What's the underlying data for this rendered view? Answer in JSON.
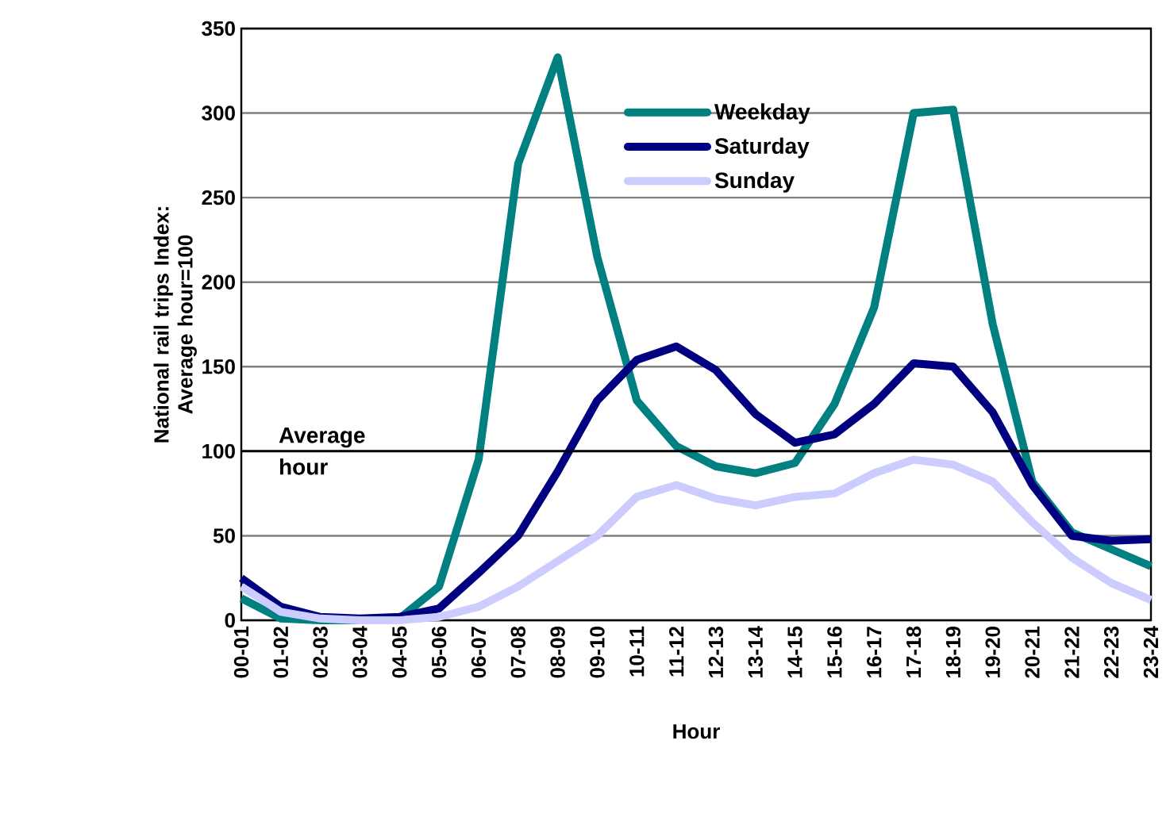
{
  "chart_data": {
    "type": "line",
    "xlabel": "Hour",
    "ylabel": "National rail trips Index: Average hour=100",
    "categories": [
      "00-01",
      "01-02",
      "02-03",
      "03-04",
      "04-05",
      "05-06",
      "06-07",
      "07-08",
      "08-09",
      "09-10",
      "10-11",
      "11-12",
      "12-13",
      "13-14",
      "14-15",
      "15-16",
      "16-17",
      "17-18",
      "18-19",
      "19-20",
      "20-21",
      "21-22",
      "22-23",
      "23-24"
    ],
    "series": [
      {
        "name": "Weekday",
        "color": "#008080",
        "values": [
          13,
          1,
          0,
          0,
          1,
          20,
          95,
          270,
          333,
          215,
          130,
          103,
          91,
          87,
          93,
          128,
          185,
          300,
          302,
          175,
          82,
          52,
          42,
          32
        ]
      },
      {
        "name": "Saturday",
        "color": "#000080",
        "values": [
          25,
          8,
          2,
          1,
          2,
          7,
          28,
          50,
          88,
          130,
          154,
          162,
          148,
          122,
          105,
          110,
          128,
          152,
          150,
          123,
          80,
          50,
          47,
          48
        ]
      },
      {
        "name": "Sunday",
        "color": "#ccccff",
        "values": [
          20,
          5,
          1,
          0,
          0,
          2,
          8,
          20,
          35,
          50,
          73,
          80,
          72,
          68,
          73,
          75,
          87,
          95,
          92,
          82,
          58,
          37,
          22,
          12
        ]
      }
    ],
    "ylim": [
      0,
      350
    ],
    "yticks": [
      0,
      50,
      100,
      150,
      200,
      250,
      300,
      350
    ],
    "grid": "y",
    "legend": "top",
    "marker": "none",
    "line_style": "solid",
    "ref_lines": [
      {
        "axis": "y",
        "value": 100,
        "label": "Average hour",
        "color": "#000000"
      }
    ]
  }
}
